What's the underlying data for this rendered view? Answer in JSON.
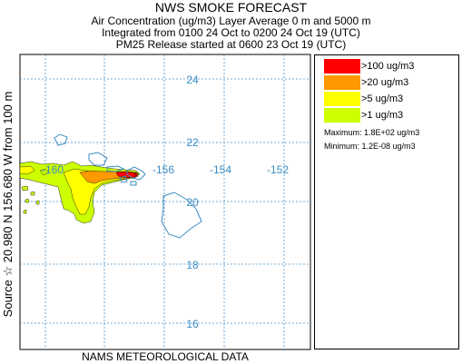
{
  "header": {
    "title": "NWS SMOKE FORECAST",
    "line2": "Air Concentration (ug/m3) Layer Average    0 m and  5000 m",
    "line3": "Integrated from 0100 24 Oct to 0200 24 Oct 19 (UTC)",
    "line4": "PM25 Release started at 0600 23 Oct 19 (UTC)"
  },
  "side_label": "Source ☆  20.980  N 156.680  W    from  100 m",
  "footer": "NAMS METEOROLOGICAL DATA",
  "map": {
    "lat_labels": [
      "24",
      "22",
      "20",
      "18",
      "16"
    ],
    "lon_labels": [
      "-160",
      "-156",
      "-154",
      "-152"
    ],
    "grid_color": "#4a90c8",
    "coast_color": "#3a8cc0"
  },
  "legend": {
    "items": [
      {
        "label": ">100 ug/m3",
        "color": "#ff0000"
      },
      {
        "label": ">20 ug/m3",
        "color": "#ff9900"
      },
      {
        "label": ">5 ug/m3",
        "color": "#ffff00"
      },
      {
        "label": ">1 ug/m3",
        "color": "#ccff00"
      }
    ],
    "maximum": "Maximum: 1.8E+02 ug/m3",
    "minimum": "Minimum: 1.2E-08 ug/m3"
  }
}
